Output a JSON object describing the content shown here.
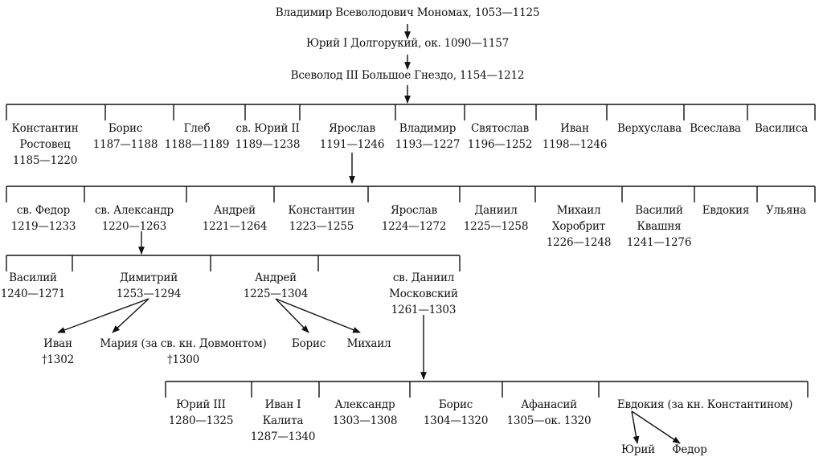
{
  "top": [
    {
      "id": "vladimir_monomakh",
      "lines": [
        "Владимир Всеволодович Мономах, 1053—1125"
      ]
    },
    {
      "id": "yuri_dolgoruky",
      "lines": [
        "Юрий I Долгорукий, ок. 1090—1157"
      ]
    },
    {
      "id": "vsevolod_iii",
      "lines": [
        "Всеволод III Большое Гнездо, 1154—1212"
      ]
    }
  ],
  "gen1": [
    {
      "id": "konstantin_rostovets",
      "lines": [
        "Константин",
        "Ростовец",
        "1185—1220"
      ]
    },
    {
      "id": "boris_1",
      "lines": [
        "Борис",
        "1187—1188"
      ]
    },
    {
      "id": "gleb",
      "lines": [
        "Глеб",
        "1188—1189"
      ]
    },
    {
      "id": "yuri_ii",
      "lines": [
        "св. Юрий II",
        "1189—1238"
      ]
    },
    {
      "id": "yaroslav_1",
      "lines": [
        "Ярослав",
        "1191—1246"
      ]
    },
    {
      "id": "vladimir_2",
      "lines": [
        "Владимир",
        "1193—1227"
      ]
    },
    {
      "id": "svyatoslav",
      "lines": [
        "Святослав",
        "1196—1252"
      ]
    },
    {
      "id": "ivan_1",
      "lines": [
        "Иван",
        "1198—1246"
      ]
    },
    {
      "id": "verkhuslava",
      "lines": [
        "Верхуслава"
      ]
    },
    {
      "id": "vseslava",
      "lines": [
        "Всеслава"
      ]
    },
    {
      "id": "vasilisa",
      "lines": [
        "Василиса"
      ]
    }
  ],
  "gen2": [
    {
      "id": "fedor",
      "lines": [
        "св. Федор",
        "1219—1233"
      ]
    },
    {
      "id": "alexander_nevsky",
      "lines": [
        "св. Александр",
        "1220—1263"
      ]
    },
    {
      "id": "andrey_1",
      "lines": [
        "Андрей",
        "1221—1264"
      ]
    },
    {
      "id": "konstantin_2",
      "lines": [
        "Константин",
        "1223—1255"
      ]
    },
    {
      "id": "yaroslav_2",
      "lines": [
        "Ярослав",
        "1224—1272"
      ]
    },
    {
      "id": "daniil_1",
      "lines": [
        "Даниил",
        "1225—1258"
      ]
    },
    {
      "id": "mikhail_khorobrit",
      "lines": [
        "Михаил",
        "Хоробрит",
        "1226—1248"
      ]
    },
    {
      "id": "vasily_kvashnya",
      "lines": [
        "Василий",
        "Квашня",
        "1241—1276"
      ]
    },
    {
      "id": "evdokia_1",
      "lines": [
        "Евдокия"
      ]
    },
    {
      "id": "ulyana",
      "lines": [
        "Ульяна"
      ]
    }
  ],
  "gen3": [
    {
      "id": "vasily_2",
      "lines": [
        "Василий",
        "1240—1271"
      ]
    },
    {
      "id": "dmitry",
      "lines": [
        "Димитрий",
        "1253—1294"
      ]
    },
    {
      "id": "andrey_2",
      "lines": [
        "Андрей",
        "1225—1304"
      ]
    },
    {
      "id": "daniil_moskovsky",
      "lines": [
        "св. Даниил",
        "Московский",
        "1261—1303"
      ]
    }
  ],
  "gen4a": [
    {
      "id": "ivan_2",
      "lines": [
        "Иван",
        "†1302"
      ]
    },
    {
      "id": "maria",
      "lines": [
        "Мария (за св. кн. Довмонтом)",
        "†1300"
      ]
    },
    {
      "id": "boris_2",
      "lines": [
        "Борис"
      ]
    },
    {
      "id": "mikhail_2",
      "lines": [
        "Михаил"
      ]
    }
  ],
  "gen4": [
    {
      "id": "yuri_iii",
      "lines": [
        "Юрий III",
        "1280—1325"
      ]
    },
    {
      "id": "ivan_kalita",
      "lines": [
        "Иван I",
        "Калита",
        "1287—1340"
      ]
    },
    {
      "id": "alexander_2",
      "lines": [
        "Александр",
        "1303—1308"
      ]
    },
    {
      "id": "boris_3",
      "lines": [
        "Борис",
        "1304—1320"
      ]
    },
    {
      "id": "afanasy",
      "lines": [
        "Афанасий",
        "1305—ок. 1320"
      ]
    },
    {
      "id": "evdokia_2",
      "lines": [
        "Евдокия (за кн. Константином)"
      ]
    }
  ],
  "gen5": [
    {
      "id": "yuri_4",
      "lines": [
        "Юрий"
      ]
    },
    {
      "id": "fedor_2",
      "lines": [
        "Федор"
      ]
    }
  ]
}
